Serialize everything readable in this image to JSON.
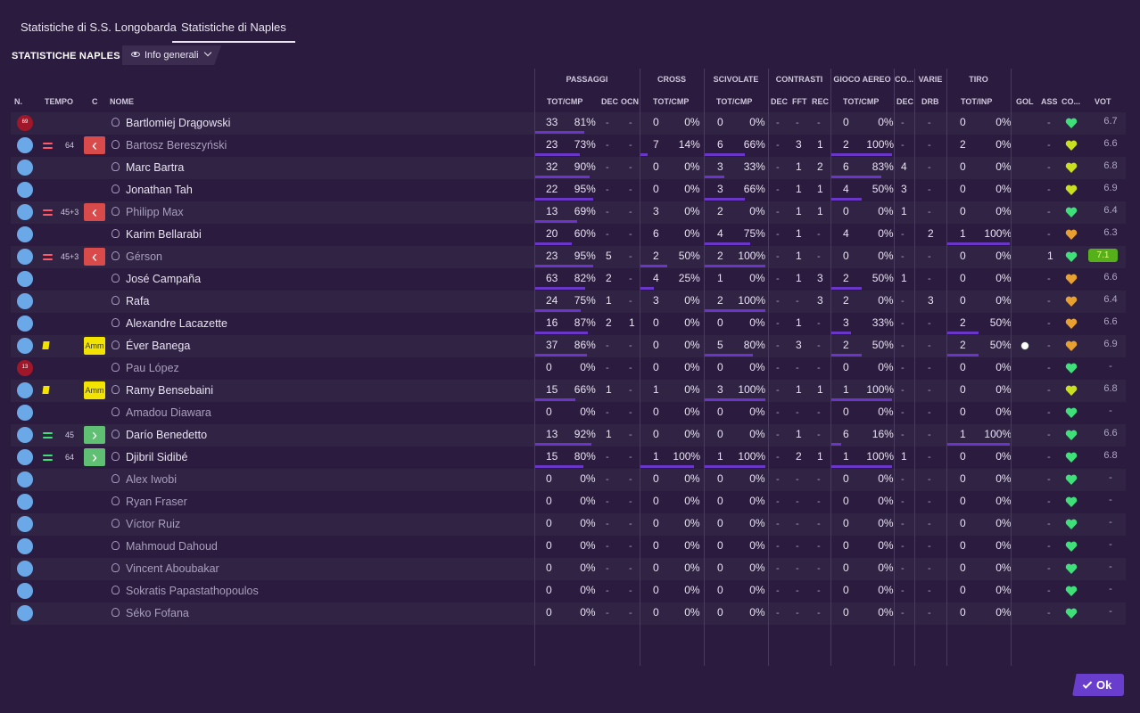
{
  "tabs": [
    {
      "label": "Statistiche di S.S. Longobarda",
      "active": false
    },
    {
      "label": "Statistiche di Naples",
      "active": true
    }
  ],
  "page_title": "STATISTICHE NAPLES",
  "view_select": "Info generali",
  "groups": [
    "PASSAGGI",
    "CROSS",
    "SCIVOLATE",
    "CONTRASTI",
    "GIOCO AEREO",
    "CO...",
    "VARIE",
    "TIRO"
  ],
  "cols": {
    "n": "N.",
    "tempo": "TEMPO",
    "c": "C",
    "nome": "NOME",
    "pass": "TOT/CMP",
    "dec1": "DEC",
    "ocn": "OCN",
    "cross": "TOT/CMP",
    "sciv": "TOT/CMP",
    "dec2": "DEC",
    "fft": "FFT",
    "rec": "REC",
    "aereo": "TOT/CMP",
    "dec3": "DEC",
    "drb": "DRB",
    "tiro": "TOT/INP",
    "gol": "GOL",
    "ass": "ASS",
    "co": "CO...",
    "vot": "VOT"
  },
  "players": [
    {
      "num": "69",
      "gk": true,
      "sub": "",
      "min": "",
      "badge": "",
      "name": "Bartlomiej Drągowski",
      "off": false,
      "pass": [
        "33",
        "81%"
      ],
      "dec": "-",
      "ocn": "-",
      "cross": [
        "0",
        "0%"
      ],
      "sciv": [
        "0",
        "0%"
      ],
      "cdec": "-",
      "fft": "-",
      "rec": "-",
      "aereo": [
        "0",
        "0%"
      ],
      "cdec2": "-",
      "drb": "-",
      "tiro": [
        "0",
        "0%"
      ],
      "gol": "",
      "ass": "-",
      "morale": "#3fe07a",
      "vot": "6.7",
      "best": false,
      "card": false
    },
    {
      "num": "",
      "gk": false,
      "sub": "out",
      "min": "64",
      "badge": "out",
      "name": "Bartosz Bereszyński",
      "off": true,
      "pass": [
        "23",
        "73%"
      ],
      "dec": "-",
      "ocn": "-",
      "cross": [
        "7",
        "14%"
      ],
      "sciv": [
        "6",
        "66%"
      ],
      "cdec": "-",
      "fft": "3",
      "rec": "1",
      "aereo": [
        "2",
        "100%"
      ],
      "cdec2": "-",
      "drb": "-",
      "tiro": [
        "2",
        "0%"
      ],
      "gol": "",
      "ass": "-",
      "morale": "#c8e020",
      "vot": "6.6",
      "best": false,
      "card": false
    },
    {
      "num": "",
      "gk": false,
      "sub": "",
      "min": "",
      "badge": "",
      "name": "Marc Bartra",
      "off": false,
      "pass": [
        "32",
        "90%"
      ],
      "dec": "-",
      "ocn": "-",
      "cross": [
        "0",
        "0%"
      ],
      "sciv": [
        "3",
        "33%"
      ],
      "cdec": "-",
      "fft": "1",
      "rec": "2",
      "aereo": [
        "6",
        "83%"
      ],
      "cdec2": "4",
      "drb": "-",
      "tiro": [
        "0",
        "0%"
      ],
      "gol": "",
      "ass": "-",
      "morale": "#c8e020",
      "vot": "6.8",
      "best": false,
      "card": false
    },
    {
      "num": "",
      "gk": false,
      "sub": "",
      "min": "",
      "badge": "",
      "name": "Jonathan Tah",
      "off": false,
      "pass": [
        "22",
        "95%"
      ],
      "dec": "-",
      "ocn": "-",
      "cross": [
        "0",
        "0%"
      ],
      "sciv": [
        "3",
        "66%"
      ],
      "cdec": "-",
      "fft": "1",
      "rec": "1",
      "aereo": [
        "4",
        "50%"
      ],
      "cdec2": "3",
      "drb": "-",
      "tiro": [
        "0",
        "0%"
      ],
      "gol": "",
      "ass": "-",
      "morale": "#c8e020",
      "vot": "6.9",
      "best": false,
      "card": false
    },
    {
      "num": "",
      "gk": false,
      "sub": "out",
      "min": "45+3",
      "badge": "out",
      "name": "Philipp Max",
      "off": true,
      "pass": [
        "13",
        "69%"
      ],
      "dec": "-",
      "ocn": "-",
      "cross": [
        "3",
        "0%"
      ],
      "sciv": [
        "2",
        "0%"
      ],
      "cdec": "-",
      "fft": "1",
      "rec": "1",
      "aereo": [
        "0",
        "0%"
      ],
      "cdec2": "1",
      "drb": "-",
      "tiro": [
        "0",
        "0%"
      ],
      "gol": "",
      "ass": "-",
      "morale": "#3fe07a",
      "vot": "6.4",
      "best": false,
      "card": false
    },
    {
      "num": "",
      "gk": false,
      "sub": "",
      "min": "",
      "badge": "",
      "name": "Karim Bellarabi",
      "off": false,
      "pass": [
        "20",
        "60%"
      ],
      "dec": "-",
      "ocn": "-",
      "cross": [
        "6",
        "0%"
      ],
      "sciv": [
        "4",
        "75%"
      ],
      "cdec": "-",
      "fft": "1",
      "rec": "-",
      "aereo": [
        "4",
        "0%"
      ],
      "cdec2": "-",
      "drb": "2",
      "tiro": [
        "1",
        "100%"
      ],
      "gol": "",
      "ass": "-",
      "morale": "#e8a030",
      "vot": "6.3",
      "best": false,
      "card": false
    },
    {
      "num": "",
      "gk": false,
      "sub": "out",
      "min": "45+3",
      "badge": "out",
      "name": "Gérson",
      "off": true,
      "pass": [
        "23",
        "95%"
      ],
      "dec": "5",
      "ocn": "-",
      "cross": [
        "2",
        "50%"
      ],
      "sciv": [
        "2",
        "100%"
      ],
      "cdec": "-",
      "fft": "1",
      "rec": "-",
      "aereo": [
        "0",
        "0%"
      ],
      "cdec2": "-",
      "drb": "-",
      "tiro": [
        "0",
        "0%"
      ],
      "gol": "",
      "ass": "1",
      "morale": "#3fe07a",
      "vot": "7.1",
      "best": true,
      "card": false
    },
    {
      "num": "",
      "gk": false,
      "sub": "",
      "min": "",
      "badge": "",
      "name": "José Campaña",
      "off": false,
      "pass": [
        "63",
        "82%"
      ],
      "dec": "2",
      "ocn": "-",
      "cross": [
        "4",
        "25%"
      ],
      "sciv": [
        "1",
        "0%"
      ],
      "cdec": "-",
      "fft": "1",
      "rec": "3",
      "aereo": [
        "2",
        "50%"
      ],
      "cdec2": "1",
      "drb": "-",
      "tiro": [
        "0",
        "0%"
      ],
      "gol": "",
      "ass": "-",
      "morale": "#e8a030",
      "vot": "6.6",
      "best": false,
      "card": false
    },
    {
      "num": "",
      "gk": false,
      "sub": "",
      "min": "",
      "badge": "",
      "name": "Rafa",
      "off": false,
      "pass": [
        "24",
        "75%"
      ],
      "dec": "1",
      "ocn": "-",
      "cross": [
        "3",
        "0%"
      ],
      "sciv": [
        "2",
        "100%"
      ],
      "cdec": "-",
      "fft": "-",
      "rec": "3",
      "aereo": [
        "2",
        "0%"
      ],
      "cdec2": "-",
      "drb": "3",
      "tiro": [
        "0",
        "0%"
      ],
      "gol": "",
      "ass": "-",
      "morale": "#e8a030",
      "vot": "6.4",
      "best": false,
      "card": false
    },
    {
      "num": "",
      "gk": false,
      "sub": "",
      "min": "",
      "badge": "",
      "name": "Alexandre Lacazette",
      "off": false,
      "pass": [
        "16",
        "87%"
      ],
      "dec": "2",
      "ocn": "1",
      "cross": [
        "0",
        "0%"
      ],
      "sciv": [
        "0",
        "0%"
      ],
      "cdec": "-",
      "fft": "1",
      "rec": "-",
      "aereo": [
        "3",
        "33%"
      ],
      "cdec2": "-",
      "drb": "-",
      "tiro": [
        "2",
        "50%"
      ],
      "gol": "",
      "ass": "-",
      "morale": "#e8a030",
      "vot": "6.6",
      "best": false,
      "card": false
    },
    {
      "num": "",
      "gk": false,
      "sub": "",
      "min": "",
      "badge": "amm",
      "name": "Éver Banega",
      "off": false,
      "pass": [
        "37",
        "86%"
      ],
      "dec": "-",
      "ocn": "-",
      "cross": [
        "0",
        "0%"
      ],
      "sciv": [
        "5",
        "80%"
      ],
      "cdec": "-",
      "fft": "3",
      "rec": "-",
      "aereo": [
        "2",
        "50%"
      ],
      "cdec2": "-",
      "drb": "-",
      "tiro": [
        "2",
        "50%"
      ],
      "gol": "ball",
      "ass": "-",
      "morale": "#e8a030",
      "vot": "6.9",
      "best": false,
      "card": true
    },
    {
      "num": "13",
      "gk": true,
      "sub": "",
      "min": "",
      "badge": "",
      "name": "Pau López",
      "off": true,
      "pass": [
        "0",
        "0%"
      ],
      "dec": "-",
      "ocn": "-",
      "cross": [
        "0",
        "0%"
      ],
      "sciv": [
        "0",
        "0%"
      ],
      "cdec": "-",
      "fft": "-",
      "rec": "-",
      "aereo": [
        "0",
        "0%"
      ],
      "cdec2": "-",
      "drb": "-",
      "tiro": [
        "0",
        "0%"
      ],
      "gol": "",
      "ass": "-",
      "morale": "#3fe07a",
      "vot": "-",
      "best": false,
      "card": false
    },
    {
      "num": "",
      "gk": false,
      "sub": "",
      "min": "",
      "badge": "amm",
      "name": "Ramy Bensebaini",
      "off": false,
      "pass": [
        "15",
        "66%"
      ],
      "dec": "1",
      "ocn": "-",
      "cross": [
        "1",
        "0%"
      ],
      "sciv": [
        "3",
        "100%"
      ],
      "cdec": "-",
      "fft": "1",
      "rec": "1",
      "aereo": [
        "1",
        "100%"
      ],
      "cdec2": "-",
      "drb": "-",
      "tiro": [
        "0",
        "0%"
      ],
      "gol": "",
      "ass": "-",
      "morale": "#c8e020",
      "vot": "6.8",
      "best": false,
      "card": true
    },
    {
      "num": "",
      "gk": false,
      "sub": "",
      "min": "",
      "badge": "",
      "name": "Amadou Diawara",
      "off": true,
      "pass": [
        "0",
        "0%"
      ],
      "dec": "-",
      "ocn": "-",
      "cross": [
        "0",
        "0%"
      ],
      "sciv": [
        "0",
        "0%"
      ],
      "cdec": "-",
      "fft": "-",
      "rec": "-",
      "aereo": [
        "0",
        "0%"
      ],
      "cdec2": "-",
      "drb": "-",
      "tiro": [
        "0",
        "0%"
      ],
      "gol": "",
      "ass": "-",
      "morale": "#3fe07a",
      "vot": "-",
      "best": false,
      "card": false
    },
    {
      "num": "",
      "gk": false,
      "sub": "in",
      "min": "45",
      "badge": "in",
      "name": "Darío Benedetto",
      "off": false,
      "pass": [
        "13",
        "92%"
      ],
      "dec": "1",
      "ocn": "-",
      "cross": [
        "0",
        "0%"
      ],
      "sciv": [
        "0",
        "0%"
      ],
      "cdec": "-",
      "fft": "1",
      "rec": "-",
      "aereo": [
        "6",
        "16%"
      ],
      "cdec2": "-",
      "drb": "-",
      "tiro": [
        "1",
        "100%"
      ],
      "gol": "",
      "ass": "-",
      "morale": "#3fe07a",
      "vot": "6.6",
      "best": false,
      "card": false
    },
    {
      "num": "",
      "gk": false,
      "sub": "in",
      "min": "64",
      "badge": "in",
      "name": "Djibril Sidibé",
      "off": false,
      "pass": [
        "15",
        "80%"
      ],
      "dec": "-",
      "ocn": "-",
      "cross": [
        "1",
        "100%"
      ],
      "sciv": [
        "1",
        "100%"
      ],
      "cdec": "-",
      "fft": "2",
      "rec": "1",
      "aereo": [
        "1",
        "100%"
      ],
      "cdec2": "1",
      "drb": "-",
      "tiro": [
        "0",
        "0%"
      ],
      "gol": "",
      "ass": "-",
      "morale": "#3fe07a",
      "vot": "6.8",
      "best": false,
      "card": false
    },
    {
      "num": "",
      "gk": false,
      "sub": "",
      "min": "",
      "badge": "",
      "name": "Alex Iwobi",
      "off": true,
      "pass": [
        "0",
        "0%"
      ],
      "dec": "-",
      "ocn": "-",
      "cross": [
        "0",
        "0%"
      ],
      "sciv": [
        "0",
        "0%"
      ],
      "cdec": "-",
      "fft": "-",
      "rec": "-",
      "aereo": [
        "0",
        "0%"
      ],
      "cdec2": "-",
      "drb": "-",
      "tiro": [
        "0",
        "0%"
      ],
      "gol": "",
      "ass": "-",
      "morale": "#3fe07a",
      "vot": "-",
      "best": false,
      "card": false
    },
    {
      "num": "",
      "gk": false,
      "sub": "",
      "min": "",
      "badge": "",
      "name": "Ryan Fraser",
      "off": true,
      "pass": [
        "0",
        "0%"
      ],
      "dec": "-",
      "ocn": "-",
      "cross": [
        "0",
        "0%"
      ],
      "sciv": [
        "0",
        "0%"
      ],
      "cdec": "-",
      "fft": "-",
      "rec": "-",
      "aereo": [
        "0",
        "0%"
      ],
      "cdec2": "-",
      "drb": "-",
      "tiro": [
        "0",
        "0%"
      ],
      "gol": "",
      "ass": "-",
      "morale": "#3fe07a",
      "vot": "-",
      "best": false,
      "card": false
    },
    {
      "num": "",
      "gk": false,
      "sub": "",
      "min": "",
      "badge": "",
      "name": "Víctor Ruiz",
      "off": true,
      "pass": [
        "0",
        "0%"
      ],
      "dec": "-",
      "ocn": "-",
      "cross": [
        "0",
        "0%"
      ],
      "sciv": [
        "0",
        "0%"
      ],
      "cdec": "-",
      "fft": "-",
      "rec": "-",
      "aereo": [
        "0",
        "0%"
      ],
      "cdec2": "-",
      "drb": "-",
      "tiro": [
        "0",
        "0%"
      ],
      "gol": "",
      "ass": "-",
      "morale": "#3fe07a",
      "vot": "-",
      "best": false,
      "card": false
    },
    {
      "num": "",
      "gk": false,
      "sub": "",
      "min": "",
      "badge": "",
      "name": "Mahmoud Dahoud",
      "off": true,
      "pass": [
        "0",
        "0%"
      ],
      "dec": "-",
      "ocn": "-",
      "cross": [
        "0",
        "0%"
      ],
      "sciv": [
        "0",
        "0%"
      ],
      "cdec": "-",
      "fft": "-",
      "rec": "-",
      "aereo": [
        "0",
        "0%"
      ],
      "cdec2": "-",
      "drb": "-",
      "tiro": [
        "0",
        "0%"
      ],
      "gol": "",
      "ass": "-",
      "morale": "#3fe07a",
      "vot": "-",
      "best": false,
      "card": false
    },
    {
      "num": "",
      "gk": false,
      "sub": "",
      "min": "",
      "badge": "",
      "name": "Vincent Aboubakar",
      "off": true,
      "pass": [
        "0",
        "0%"
      ],
      "dec": "-",
      "ocn": "-",
      "cross": [
        "0",
        "0%"
      ],
      "sciv": [
        "0",
        "0%"
      ],
      "cdec": "-",
      "fft": "-",
      "rec": "-",
      "aereo": [
        "0",
        "0%"
      ],
      "cdec2": "-",
      "drb": "-",
      "tiro": [
        "0",
        "0%"
      ],
      "gol": "",
      "ass": "-",
      "morale": "#3fe07a",
      "vot": "-",
      "best": false,
      "card": false
    },
    {
      "num": "",
      "gk": false,
      "sub": "",
      "min": "",
      "badge": "",
      "name": "Sokratis Papastathopoulos",
      "off": true,
      "pass": [
        "0",
        "0%"
      ],
      "dec": "-",
      "ocn": "-",
      "cross": [
        "0",
        "0%"
      ],
      "sciv": [
        "0",
        "0%"
      ],
      "cdec": "-",
      "fft": "-",
      "rec": "-",
      "aereo": [
        "0",
        "0%"
      ],
      "cdec2": "-",
      "drb": "-",
      "tiro": [
        "0",
        "0%"
      ],
      "gol": "",
      "ass": "-",
      "morale": "#3fe07a",
      "vot": "-",
      "best": false,
      "card": false
    },
    {
      "num": "",
      "gk": false,
      "sub": "",
      "min": "",
      "badge": "",
      "name": "Séko Fofana",
      "off": true,
      "pass": [
        "0",
        "0%"
      ],
      "dec": "-",
      "ocn": "-",
      "cross": [
        "0",
        "0%"
      ],
      "sciv": [
        "0",
        "0%"
      ],
      "cdec": "-",
      "fft": "-",
      "rec": "-",
      "aereo": [
        "0",
        "0%"
      ],
      "cdec2": "-",
      "drb": "-",
      "tiro": [
        "0",
        "0%"
      ],
      "gol": "",
      "ass": "-",
      "morale": "#3fe07a",
      "vot": "-",
      "best": false,
      "card": false
    }
  ],
  "ok_label": "Ok",
  "badge_labels": {
    "amm": "Amm"
  }
}
